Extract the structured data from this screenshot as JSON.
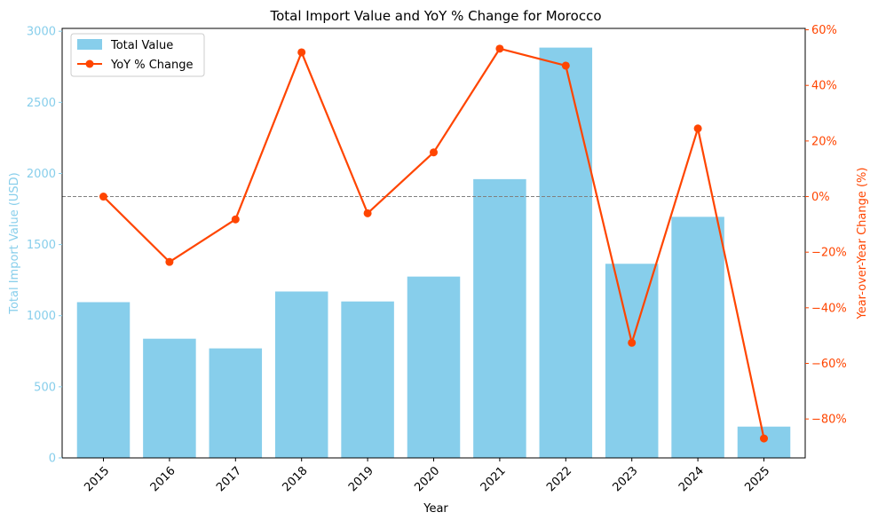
{
  "chart_data": {
    "type": "bar",
    "title": "Total Import Value and YoY % Change for Morocco",
    "xlabel": "Year",
    "ylabel": "Total Import Value (USD)",
    "ylabel_right": "Year-over-Year Change (%)",
    "categories": [
      "2015",
      "2016",
      "2017",
      "2018",
      "2019",
      "2020",
      "2021",
      "2022",
      "2023",
      "2024",
      "2025"
    ],
    "y_ticks": [
      "0",
      "500",
      "1000",
      "1500",
      "2000",
      "2500",
      "3000"
    ],
    "y2_ticks": [
      "−80%",
      "−60%",
      "−40%",
      "−20%",
      "0%",
      "20%",
      "40%",
      "60%"
    ],
    "ylim": [
      0,
      3020
    ],
    "y2lim": [
      -94,
      60.5
    ],
    "grid": false,
    "zero_reference_line": 0,
    "legend_position": "top-left",
    "series": [
      {
        "name": "Total Value",
        "type": "bar",
        "axis": "left",
        "color": "#87CEEB",
        "values": [
          1095,
          838,
          770,
          1170,
          1100,
          1275,
          1960,
          2885,
          1365,
          1695,
          220
        ]
      },
      {
        "name": "YoY % Change",
        "type": "line",
        "axis": "right",
        "color": "#FF4500",
        "values": [
          0,
          -23.5,
          -8.2,
          51.9,
          -6.0,
          15.9,
          53.2,
          47.1,
          -52.6,
          24.5,
          -87.0
        ]
      }
    ]
  }
}
